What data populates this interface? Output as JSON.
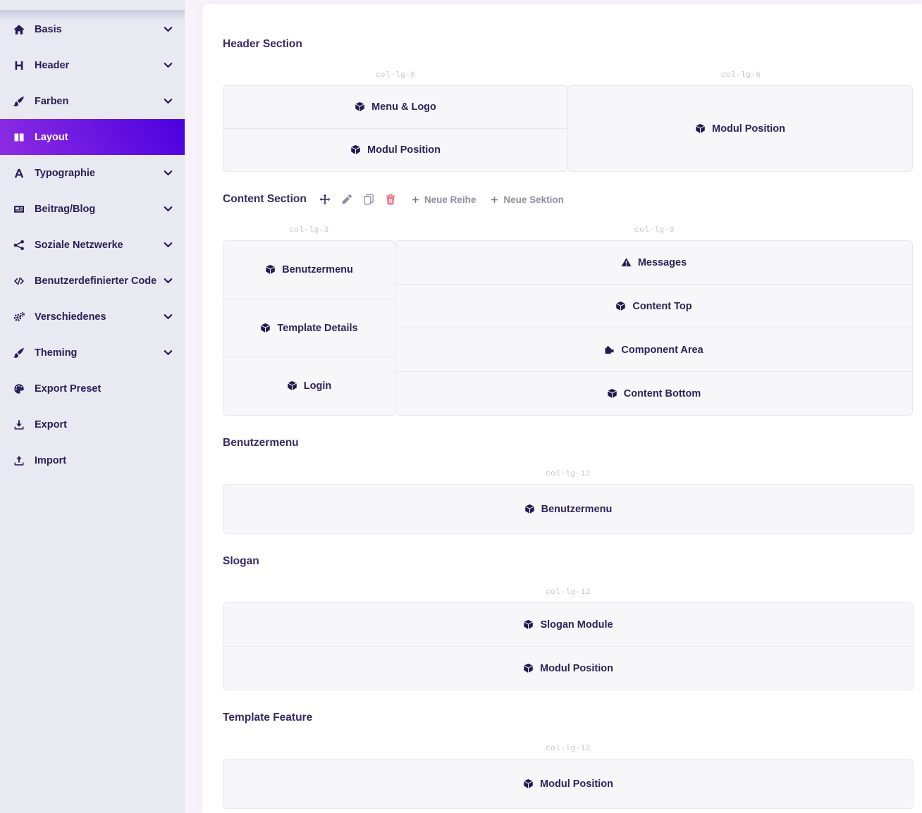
{
  "colors": {
    "sidebar_bg": "#e9e9f2",
    "active_gradient_from": "#8e2de2",
    "active_gradient_to": "#4a00e0",
    "box_bg": "#f7f7fa",
    "box_border": "#e8e6ee",
    "text_dark": "#2b2359",
    "muted_col_label": "#c8c4cf",
    "danger": "#e0727f"
  },
  "sidebar": {
    "items": [
      {
        "label": "Basis",
        "icon": "home",
        "chevron": true,
        "active": false
      },
      {
        "label": "Header",
        "icon": "heading",
        "chevron": true,
        "active": false
      },
      {
        "label": "Farben",
        "icon": "brush",
        "chevron": true,
        "active": false
      },
      {
        "label": "Layout",
        "icon": "columns",
        "chevron": false,
        "active": true
      },
      {
        "label": "Typographie",
        "icon": "font",
        "chevron": true,
        "active": false
      },
      {
        "label": "Beitrag/Blog",
        "icon": "newspaper",
        "chevron": true,
        "active": false
      },
      {
        "label": "Soziale Netzwerke",
        "icon": "share",
        "chevron": true,
        "active": false
      },
      {
        "label": "Benutzerdefinierter Code",
        "icon": "code",
        "chevron": true,
        "active": false
      },
      {
        "label": "Verschiedenes",
        "icon": "cogs",
        "chevron": true,
        "active": false
      },
      {
        "label": "Theming",
        "icon": "brush",
        "chevron": true,
        "active": false
      },
      {
        "label": "Export Preset",
        "icon": "palette",
        "chevron": false,
        "active": false
      },
      {
        "label": "Export",
        "icon": "download",
        "chevron": false,
        "active": false
      },
      {
        "label": "Import",
        "icon": "upload",
        "chevron": false,
        "active": false
      }
    ]
  },
  "main": {
    "sections": [
      {
        "title": "Header Section",
        "columns": [
          {
            "width_label": "col-lg-6",
            "cells": [
              {
                "icon": "cube",
                "label": "Menu & Logo"
              },
              {
                "icon": "cube",
                "label": "Modul Position"
              }
            ]
          },
          {
            "width_label": "col-lg-6",
            "cells": [
              {
                "icon": "cube",
                "label": "Modul Position"
              }
            ]
          }
        ]
      },
      {
        "title": "Content Section",
        "toolbar": {
          "icons": [
            "move",
            "edit",
            "copy",
            "trash"
          ],
          "links": [
            {
              "icon": "plus",
              "label": "Neue Reihe"
            },
            {
              "icon": "plus",
              "label": "Neue Sektion"
            }
          ]
        },
        "columns": [
          {
            "width_label": "col-lg-3",
            "cells": [
              {
                "icon": "cube",
                "label": "Benutzermenu"
              },
              {
                "icon": "cube",
                "label": "Template Details"
              },
              {
                "icon": "cube",
                "label": "Login"
              }
            ]
          },
          {
            "width_label": "col-lg-9",
            "cells": [
              {
                "icon": "warning",
                "label": "Messages"
              },
              {
                "icon": "cube",
                "label": "Content Top"
              },
              {
                "icon": "puzzle",
                "label": "Component Area"
              },
              {
                "icon": "cube",
                "label": "Content Bottom"
              }
            ]
          }
        ]
      },
      {
        "title": "Benutzermenu",
        "columns": [
          {
            "width_label": "col-lg-12",
            "cells": [
              {
                "icon": "cube",
                "label": "Benutzermenu"
              }
            ]
          }
        ]
      },
      {
        "title": "Slogan",
        "columns": [
          {
            "width_label": "col-lg-12",
            "cells": [
              {
                "icon": "cube",
                "label": "Slogan Module"
              },
              {
                "icon": "cube",
                "label": "Modul Position"
              }
            ]
          }
        ]
      },
      {
        "title": "Template Feature",
        "columns": [
          {
            "width_label": "col-lg-12",
            "cells": [
              {
                "icon": "cube",
                "label": "Modul Position"
              }
            ]
          }
        ]
      }
    ]
  }
}
